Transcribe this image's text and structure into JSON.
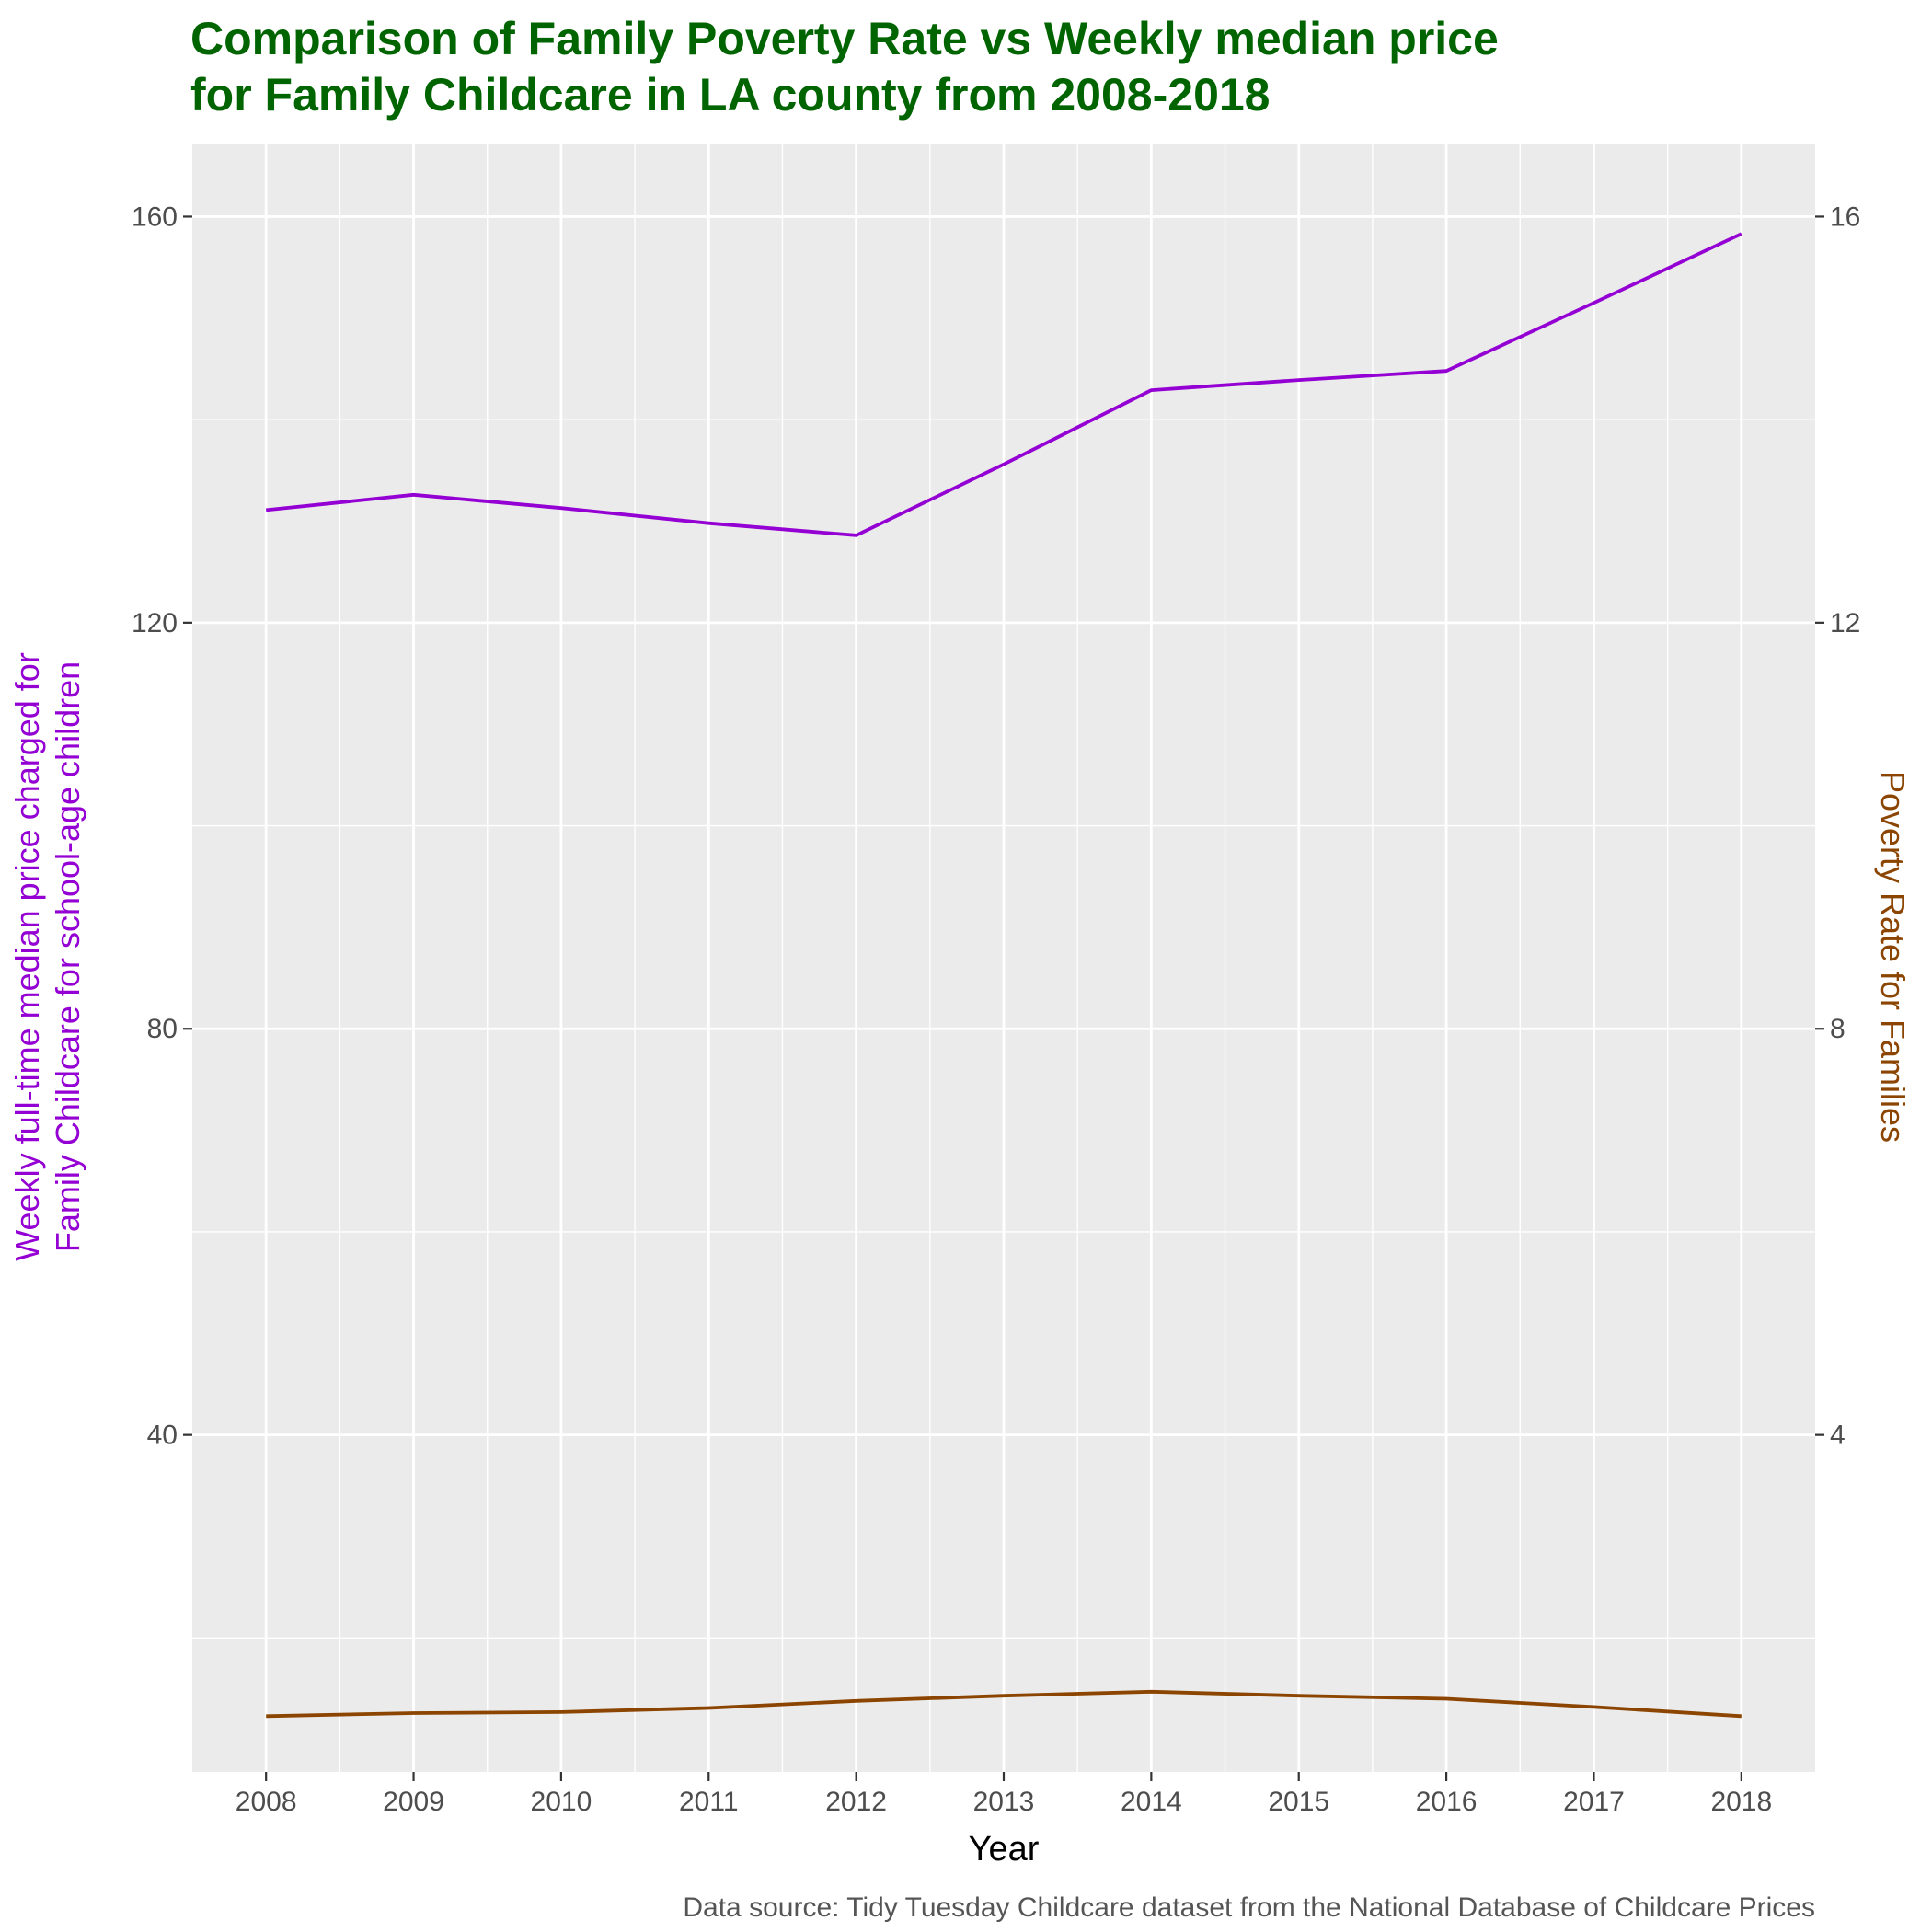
{
  "chart_data": {
    "type": "line",
    "title_lines": [
      "Comparison of Family Poverty Rate vs Weekly median price",
      "for Family Childcare in LA county from 2008-2018"
    ],
    "xlabel": "Year",
    "ylabel_left_lines": [
      "Weekly full-time median price charged for",
      "Family Childcare for school-age children"
    ],
    "ylabel_right": "Poverty Rate for Families",
    "caption": "Data source: Tidy Tuesday Childcare dataset from the National Database of Childcare Prices",
    "x": [
      2008,
      2009,
      2010,
      2011,
      2012,
      2013,
      2014,
      2015,
      2016,
      2017,
      2018
    ],
    "x_ticks": [
      "2008",
      "2009",
      "2010",
      "2011",
      "2012",
      "2013",
      "2014",
      "2015",
      "2016",
      "2017",
      "2018"
    ],
    "y_left_ticks": [
      "40",
      "80",
      "120",
      "160"
    ],
    "y_right_ticks": [
      "4",
      "8",
      "12",
      "16"
    ],
    "ylim_left": [
      6.8,
      167.2
    ],
    "ylim_right": [
      0.68,
      16.72
    ],
    "grid": true,
    "series": [
      {
        "axis": "left",
        "color": "#9400D3",
        "values": [
          131.1,
          132.6,
          131.3,
          129.8,
          128.6,
          135.6,
          142.9,
          143.9,
          144.8,
          151.5,
          158.3
        ]
      },
      {
        "axis": "right",
        "color": "#8B4500",
        "values": [
          1.23,
          1.26,
          1.27,
          1.31,
          1.38,
          1.43,
          1.47,
          1.43,
          1.4,
          1.32,
          1.23
        ]
      }
    ]
  }
}
